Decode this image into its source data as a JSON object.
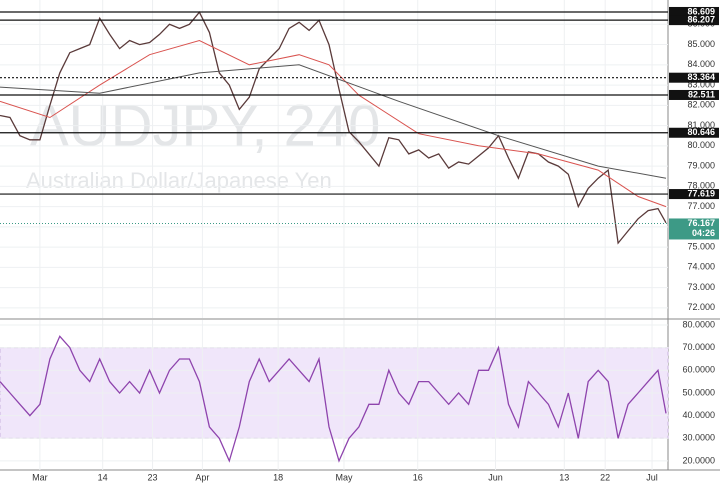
{
  "chart_data": [
    {
      "type": "line",
      "watermark_title": "AUDJPY, 240",
      "watermark_subtitle": "Australian Dollar/Japanese Yen",
      "xlim": [
        0,
        134
      ],
      "ylim": [
        71.5,
        87.2
      ],
      "yticks": [
        {
          "value": 72,
          "label": "72.000"
        },
        {
          "value": 73,
          "label": "73.000"
        },
        {
          "value": 74,
          "label": "74.000"
        },
        {
          "value": 75,
          "label": "75.000"
        },
        {
          "value": 76,
          "label": "76.000"
        },
        {
          "value": 77,
          "label": "77.000"
        },
        {
          "value": 78,
          "label": "78.000"
        },
        {
          "value": 79,
          "label": "79.000"
        },
        {
          "value": 80,
          "label": "80.000"
        },
        {
          "value": 81,
          "label": "81.000"
        },
        {
          "value": 82,
          "label": "82.000"
        },
        {
          "value": 83,
          "label": "83.000"
        },
        {
          "value": 84,
          "label": "84.000"
        },
        {
          "value": 85,
          "label": "85.000"
        },
        {
          "value": 86,
          "label": "86.000"
        }
      ],
      "x": [
        0,
        2,
        4,
        6,
        8,
        10,
        12,
        14,
        16,
        18,
        20,
        22,
        24,
        26,
        28,
        30,
        32,
        34,
        36,
        38,
        40,
        42,
        44,
        46,
        48,
        50,
        52,
        54,
        56,
        58,
        60,
        62,
        64,
        66,
        68,
        70,
        72,
        74,
        76,
        78,
        80,
        82,
        84,
        86,
        88,
        90,
        92,
        94,
        96,
        98,
        100,
        102,
        104,
        106,
        108,
        110,
        112,
        114,
        116,
        118,
        120,
        122,
        124,
        126,
        128,
        130,
        132,
        133.6
      ],
      "series": [
        {
          "color": "#5a3a3a",
          "values": [
            81.5,
            81.4,
            80.5,
            80.3,
            80.3,
            82.0,
            83.6,
            84.6,
            84.8,
            85.0,
            86.3,
            85.5,
            84.8,
            85.2,
            85.0,
            85.1,
            85.5,
            86.0,
            85.8,
            86.0,
            86.6,
            85.6,
            83.6,
            83.0,
            81.8,
            82.4,
            83.8,
            84.3,
            84.8,
            85.8,
            86.1,
            85.7,
            86.2,
            85.0,
            82.8,
            80.7,
            80.2,
            79.6,
            79.0,
            80.4,
            80.3,
            79.6,
            79.8,
            79.4,
            79.6,
            78.9,
            79.2,
            79.1,
            79.5,
            79.9,
            80.5,
            79.4,
            78.4,
            79.7,
            79.6,
            79.2,
            79.0,
            78.6,
            77.0,
            77.9,
            78.4,
            78.8,
            75.2,
            75.8,
            76.4,
            76.8,
            76.9,
            76.2
          ]
        },
        {
          "color": "#d9534f",
          "x": [
            0,
            10,
            20,
            30,
            40,
            50,
            60,
            66,
            72,
            84,
            96,
            108,
            120,
            128,
            133.6
          ],
          "values": [
            82.2,
            81.4,
            83.0,
            84.5,
            85.2,
            84.0,
            84.5,
            84.0,
            82.5,
            80.6,
            80.0,
            79.6,
            78.8,
            77.5,
            77.0
          ]
        },
        {
          "color": "#555555",
          "x": [
            0,
            20,
            40,
            60,
            80,
            100,
            120,
            133.6
          ],
          "values": [
            82.9,
            82.6,
            83.6,
            84.0,
            82.2,
            80.5,
            79.0,
            78.4
          ]
        }
      ],
      "levels": [
        {
          "value": 86.609,
          "dashed": false
        },
        {
          "value": 86.207,
          "dashed": false
        },
        {
          "value": 83.364,
          "dashed": true
        },
        {
          "value": 82.511,
          "dashed": false
        },
        {
          "value": 80.646,
          "dashed": false
        },
        {
          "value": 77.619,
          "dashed": false
        }
      ],
      "last_price": 76.167,
      "last_color": "#3d9a86",
      "countdown": "04:26"
    },
    {
      "type": "line",
      "xlim": [
        0,
        134
      ],
      "ylim": [
        16,
        82.2
      ],
      "band": [
        30,
        70
      ],
      "yticks": [
        {
          "value": 20,
          "label": "20.0000"
        },
        {
          "value": 30,
          "label": "30.0000"
        },
        {
          "value": 40,
          "label": "40.0000"
        },
        {
          "value": 50,
          "label": "50.0000"
        },
        {
          "value": 60,
          "label": "60.0000"
        },
        {
          "value": 70,
          "label": "70.0000"
        },
        {
          "value": 80,
          "label": "80.0000"
        }
      ],
      "xticks": [
        {
          "value": 8,
          "label": "Mar"
        },
        {
          "value": 20.6,
          "label": "14"
        },
        {
          "value": 30.6,
          "label": "23"
        },
        {
          "value": 40.6,
          "label": "Apr"
        },
        {
          "value": 55.8,
          "label": "18"
        },
        {
          "value": 69,
          "label": "May"
        },
        {
          "value": 83.8,
          "label": "16"
        },
        {
          "value": 99.4,
          "label": "Jun"
        },
        {
          "value": 113.2,
          "label": "13"
        },
        {
          "value": 121.4,
          "label": "22"
        },
        {
          "value": 130.8,
          "label": "Jul"
        }
      ],
      "x": [
        0,
        2,
        4,
        6,
        8,
        10,
        12,
        14,
        16,
        18,
        20,
        22,
        24,
        26,
        28,
        30,
        32,
        34,
        36,
        38,
        40,
        42,
        44,
        46,
        48,
        50,
        52,
        54,
        56,
        58,
        60,
        62,
        64,
        66,
        68,
        70,
        72,
        74,
        76,
        78,
        80,
        82,
        84,
        86,
        88,
        90,
        92,
        94,
        96,
        98,
        100,
        102,
        104,
        106,
        108,
        110,
        112,
        114,
        116,
        118,
        120,
        122,
        124,
        126,
        128,
        130,
        132,
        133.6
      ],
      "series": [
        {
          "color": "#8e44ad",
          "values": [
            55,
            50,
            45,
            40,
            45,
            65,
            75,
            70,
            60,
            55,
            65,
            55,
            50,
            55,
            50,
            60,
            50,
            60,
            65,
            65,
            55,
            35,
            30,
            20,
            35,
            55,
            65,
            55,
            60,
            65,
            60,
            55,
            65,
            35,
            20,
            30,
            35,
            45,
            45,
            60,
            50,
            45,
            55,
            55,
            50,
            45,
            50,
            45,
            60,
            60,
            70,
            45,
            35,
            55,
            50,
            45,
            35,
            50,
            30,
            55,
            60,
            55,
            30,
            45,
            50,
            55,
            60,
            41
          ]
        }
      ]
    }
  ]
}
